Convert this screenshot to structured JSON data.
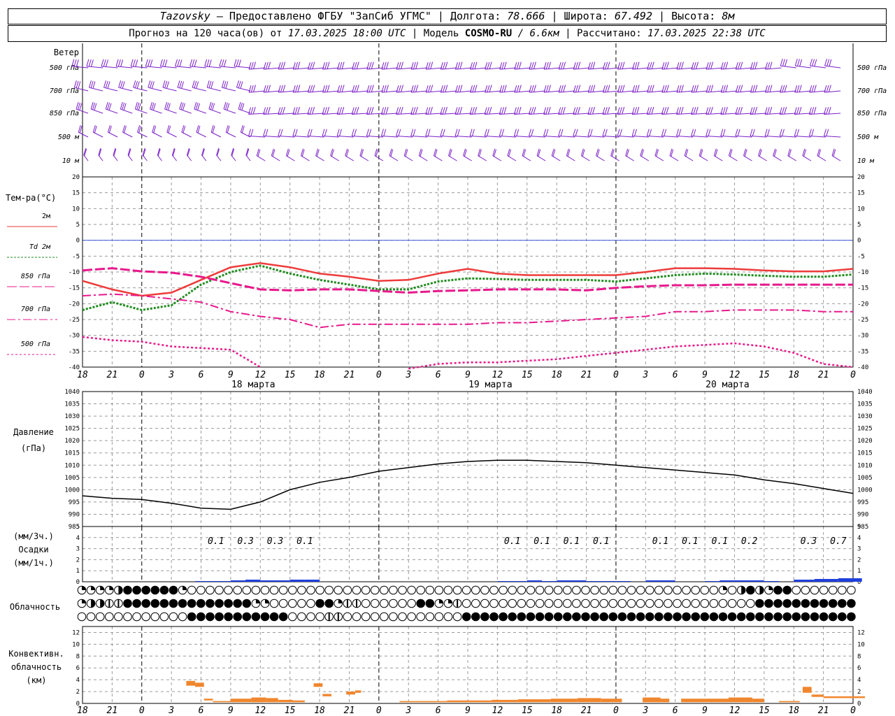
{
  "header": {
    "station": "Tazovsky",
    "provider": "— Предоставлено ФГБУ \"ЗапСиб УГМС\" |",
    "lon_label": "Долгота:",
    "lon_value": "78.666",
    "lat_label": "| Широта:",
    "lat_value": "67.492",
    "alt_label": "| Высота:",
    "alt_value": "8м",
    "forecast_label": "Прогноз на 120 часа(ов) от",
    "forecast_start": "17.03.2025 18:00 UTC",
    "model_label": "| Модель",
    "model_name": "COSMO-RU",
    "model_res": "/ 6.6км",
    "calc_label": "| Рассчитано:",
    "calc_time": "17.03.2025 22:38 UTC"
  },
  "labels": {
    "wind": "Ветер",
    "wind_levels": [
      "500 гПа",
      "700 гПа",
      "850 гПа",
      "500 м",
      "10 м"
    ],
    "temp_title": "Тем-ра(°С)",
    "temp_legend": [
      "2м",
      "Td 2м",
      "850 гПа",
      "700 гПа",
      "500 гПа"
    ],
    "pressure_title": "Давление",
    "pressure_unit": "(гПа)",
    "precip_title": "Осадки",
    "precip_unit_3h": "(мм/3ч.)",
    "precip_unit_1h": "(мм/1ч.)",
    "cloud_title": "Облачность",
    "conv_title": [
      "Конвективн.",
      "облачность",
      "(км)"
    ],
    "day_labels": [
      "18 марта",
      "19 марта",
      "20 марта"
    ]
  },
  "chart_data": [
    {
      "type": "line",
      "name": "temperature",
      "x_ticks": [
        "18",
        "21",
        "0",
        "3",
        "6",
        "9",
        "12",
        "15",
        "18",
        "21",
        "0",
        "3",
        "6",
        "9",
        "12",
        "15",
        "18",
        "21",
        "0",
        "3",
        "6",
        "9",
        "12",
        "15",
        "18",
        "21",
        "0"
      ],
      "ylim": [
        -40,
        20
      ],
      "y_ticks": [
        20,
        15,
        10,
        5,
        0,
        -5,
        -10,
        -15,
        -20,
        -25,
        -30,
        -35,
        -40
      ],
      "series": [
        {
          "name": "2м",
          "color": "#ee3b3b",
          "values": [
            -12.8,
            -15.5,
            -17.5,
            -16.5,
            -12.5,
            -8.5,
            -7.2,
            -8.5,
            -10.5,
            -11.5,
            -12.8,
            -12.5,
            -10.5,
            -9.0,
            -10.5,
            -11.0,
            -11.0,
            -11.0,
            -11.0,
            -10.0,
            -8.8,
            -8.8,
            -9.0,
            -9.5,
            -9.8,
            -9.8,
            -9.0
          ]
        },
        {
          "name": "Td 2м",
          "color": "#1e8c1e",
          "values": [
            -22.0,
            -19.5,
            -22.0,
            -20.5,
            -14.0,
            -10.0,
            -8.0,
            -10.5,
            -12.5,
            -14.0,
            -15.5,
            -15.5,
            -13.0,
            -12.0,
            -12.2,
            -12.5,
            -12.5,
            -12.5,
            -13.0,
            -12.0,
            -11.0,
            -10.5,
            -10.8,
            -11.2,
            -11.5,
            -11.5,
            -10.8
          ]
        },
        {
          "name": "850 гПа",
          "color": "#e8188c",
          "values": [
            -9.5,
            -8.8,
            -9.8,
            -10.2,
            -11.5,
            -13.5,
            -15.5,
            -15.8,
            -15.5,
            -15.5,
            -16.0,
            -16.5,
            -16.0,
            -15.8,
            -15.5,
            -15.5,
            -15.5,
            -15.8,
            -15.0,
            -14.5,
            -14.2,
            -14.2,
            -14.0,
            -14.0,
            -14.0,
            -14.0,
            -14.0
          ]
        },
        {
          "name": "700 гПа",
          "color": "#e8188c",
          "values": [
            -17.5,
            -17.0,
            -17.5,
            -18.5,
            -19.5,
            -22.5,
            -24.0,
            -25.0,
            -27.5,
            -26.5,
            -26.5,
            -26.5,
            -26.5,
            -26.5,
            -26.0,
            -26.0,
            -25.5,
            -25.0,
            -24.5,
            -24.0,
            -22.5,
            -22.5,
            -22.0,
            -22.0,
            -22.0,
            -22.5,
            -22.5
          ]
        },
        {
          "name": "500 гПа",
          "color": "#e8188c",
          "values": [
            -30.5,
            -31.5,
            -32.0,
            -33.5,
            -34.0,
            -34.5,
            -40.0,
            null,
            null,
            null,
            null,
            -40.5,
            -39.0,
            -38.5,
            -38.5,
            -38.0,
            -37.5,
            -36.5,
            -35.5,
            -34.5,
            -33.5,
            -33.0,
            -32.5,
            -33.5,
            -35.5,
            -39.0,
            -40.0
          ]
        }
      ]
    },
    {
      "type": "line",
      "name": "pressure",
      "ylim": [
        985,
        1040
      ],
      "y_ticks": [
        1040,
        1035,
        1030,
        1025,
        1020,
        1015,
        1010,
        1005,
        1000,
        995,
        990,
        985
      ],
      "series": [
        {
          "name": "pressure",
          "color": "#000000",
          "values": [
            997.5,
            996.5,
            996.0,
            994.5,
            992.5,
            992.0,
            995.0,
            1000.0,
            1003.0,
            1005.0,
            1007.5,
            1009.0,
            1010.5,
            1011.5,
            1012.0,
            1012.0,
            1011.5,
            1011.0,
            1010.0,
            1009.0,
            1008.0,
            1007.0,
            1006.0,
            1004.0,
            1002.5,
            1000.5,
            998.5
          ]
        }
      ]
    },
    {
      "type": "bar",
      "name": "precipitation",
      "ylim": [
        0,
        5
      ],
      "labels_3h": [
        {
          "x": 4.5,
          "text": "0.1"
        },
        {
          "x": 5.5,
          "text": "0.3"
        },
        {
          "x": 6.5,
          "text": "0.3"
        },
        {
          "x": 7.5,
          "text": "0.1"
        },
        {
          "x": 14.5,
          "text": "0.1"
        },
        {
          "x": 15.5,
          "text": "0.1"
        },
        {
          "x": 16.5,
          "text": "0.1"
        },
        {
          "x": 17.5,
          "text": "0.1"
        },
        {
          "x": 19.5,
          "text": "0.1"
        },
        {
          "x": 20.5,
          "text": "0.1"
        },
        {
          "x": 21.5,
          "text": "0.1"
        },
        {
          "x": 22.5,
          "text": "0.2"
        },
        {
          "x": 24.5,
          "text": "0.3"
        },
        {
          "x": 25.5,
          "text": "0.7"
        }
      ],
      "bars": [
        [
          3.8,
          4.0,
          0.1
        ],
        [
          4.0,
          4.5,
          0.1
        ],
        [
          4.5,
          5.0,
          0.1
        ],
        [
          5.0,
          5.5,
          0.2
        ],
        [
          5.5,
          6.0,
          0.3
        ],
        [
          6.0,
          6.5,
          0.2
        ],
        [
          6.5,
          7.0,
          0.2
        ],
        [
          7.0,
          7.5,
          0.3
        ],
        [
          7.5,
          8.0,
          0.3
        ],
        [
          14.0,
          15.0,
          0.1
        ],
        [
          15.0,
          15.5,
          0.2
        ],
        [
          15.5,
          16.0,
          0.1
        ],
        [
          16.0,
          17.0,
          0.2
        ],
        [
          17.0,
          18.0,
          0.1
        ],
        [
          18.0,
          18.5,
          0.1
        ],
        [
          19.0,
          20.0,
          0.2
        ],
        [
          21.0,
          21.5,
          0.1
        ],
        [
          21.5,
          23.0,
          0.2
        ],
        [
          23.0,
          23.5,
          0.1
        ],
        [
          24.0,
          24.7,
          0.3
        ],
        [
          24.7,
          25.5,
          0.4
        ],
        [
          25.5,
          26.0,
          0.5
        ],
        [
          26.0,
          26.3,
          0.5
        ]
      ]
    },
    {
      "type": "bar",
      "name": "convective_cloud",
      "ylim": [
        0,
        13
      ],
      "y_ticks": [
        12,
        10,
        8,
        6,
        4,
        2,
        0
      ],
      "bars": [
        [
          3.5,
          3.8,
          3.0,
          3.8
        ],
        [
          3.8,
          4.1,
          2.8,
          3.5
        ],
        [
          4.1,
          4.4,
          0.5,
          0.8
        ],
        [
          4.4,
          5.0,
          0.2,
          0.4
        ],
        [
          5.0,
          5.7,
          0.2,
          0.8
        ],
        [
          5.7,
          6.2,
          0.2,
          1.0
        ],
        [
          6.2,
          6.6,
          0.2,
          0.9
        ],
        [
          6.6,
          7.1,
          0.2,
          0.6
        ],
        [
          7.1,
          7.5,
          0.2,
          0.5
        ],
        [
          7.8,
          8.1,
          2.8,
          3.4
        ],
        [
          8.1,
          8.4,
          1.2,
          1.6
        ],
        [
          8.9,
          9.2,
          1.5,
          2.0
        ],
        [
          9.2,
          9.4,
          1.8,
          2.2
        ],
        [
          10.7,
          12.3,
          0.2,
          0.4
        ],
        [
          12.3,
          13.8,
          0.2,
          0.5
        ],
        [
          13.8,
          14.7,
          0.2,
          0.6
        ],
        [
          14.7,
          15.8,
          0.2,
          0.7
        ],
        [
          15.8,
          16.7,
          0.2,
          0.8
        ],
        [
          16.7,
          17.5,
          0.2,
          0.9
        ],
        [
          17.5,
          18.2,
          0.2,
          0.8
        ],
        [
          18.9,
          19.5,
          0.2,
          1.0
        ],
        [
          19.5,
          19.8,
          0.2,
          0.8
        ],
        [
          20.2,
          21.8,
          0.2,
          0.8
        ],
        [
          21.8,
          22.6,
          0.2,
          1.0
        ],
        [
          22.6,
          23.0,
          0.2,
          0.8
        ],
        [
          23.5,
          24.2,
          0.2,
          0.4
        ],
        [
          24.3,
          24.6,
          1.8,
          2.8
        ],
        [
          24.6,
          25.0,
          1.1,
          1.5
        ],
        [
          25.0,
          25.8,
          0.9,
          1.2
        ],
        [
          25.8,
          26.4,
          0.9,
          1.2
        ]
      ]
    }
  ],
  "cloud_rows": [
    "QQQQHFFFFFFQOOOOOOOOOOOOOOOOOOOOOOOOOOOOOOOOOOOOOOOOOOOOOOOOOOOOOOOOOOQOHFHQFFOOOOOO",
    "QHHEEFFFFFFFFFFFFFFQQOOOOOFFQEEOOOOOOFFQQEOOOOOOOOOOOOOOOOOOOOOOOOOOOOOOOOFFFFFFFFFFFF",
    "OOOOOOOOOOOOFFFFFFFFFFFOOOOEEOOOOOOOOOOOOOFFFFFFFFFFFFFFFFFFFFFFFFFFFFFFFFFFFFFFFFFFFF"
  ]
}
